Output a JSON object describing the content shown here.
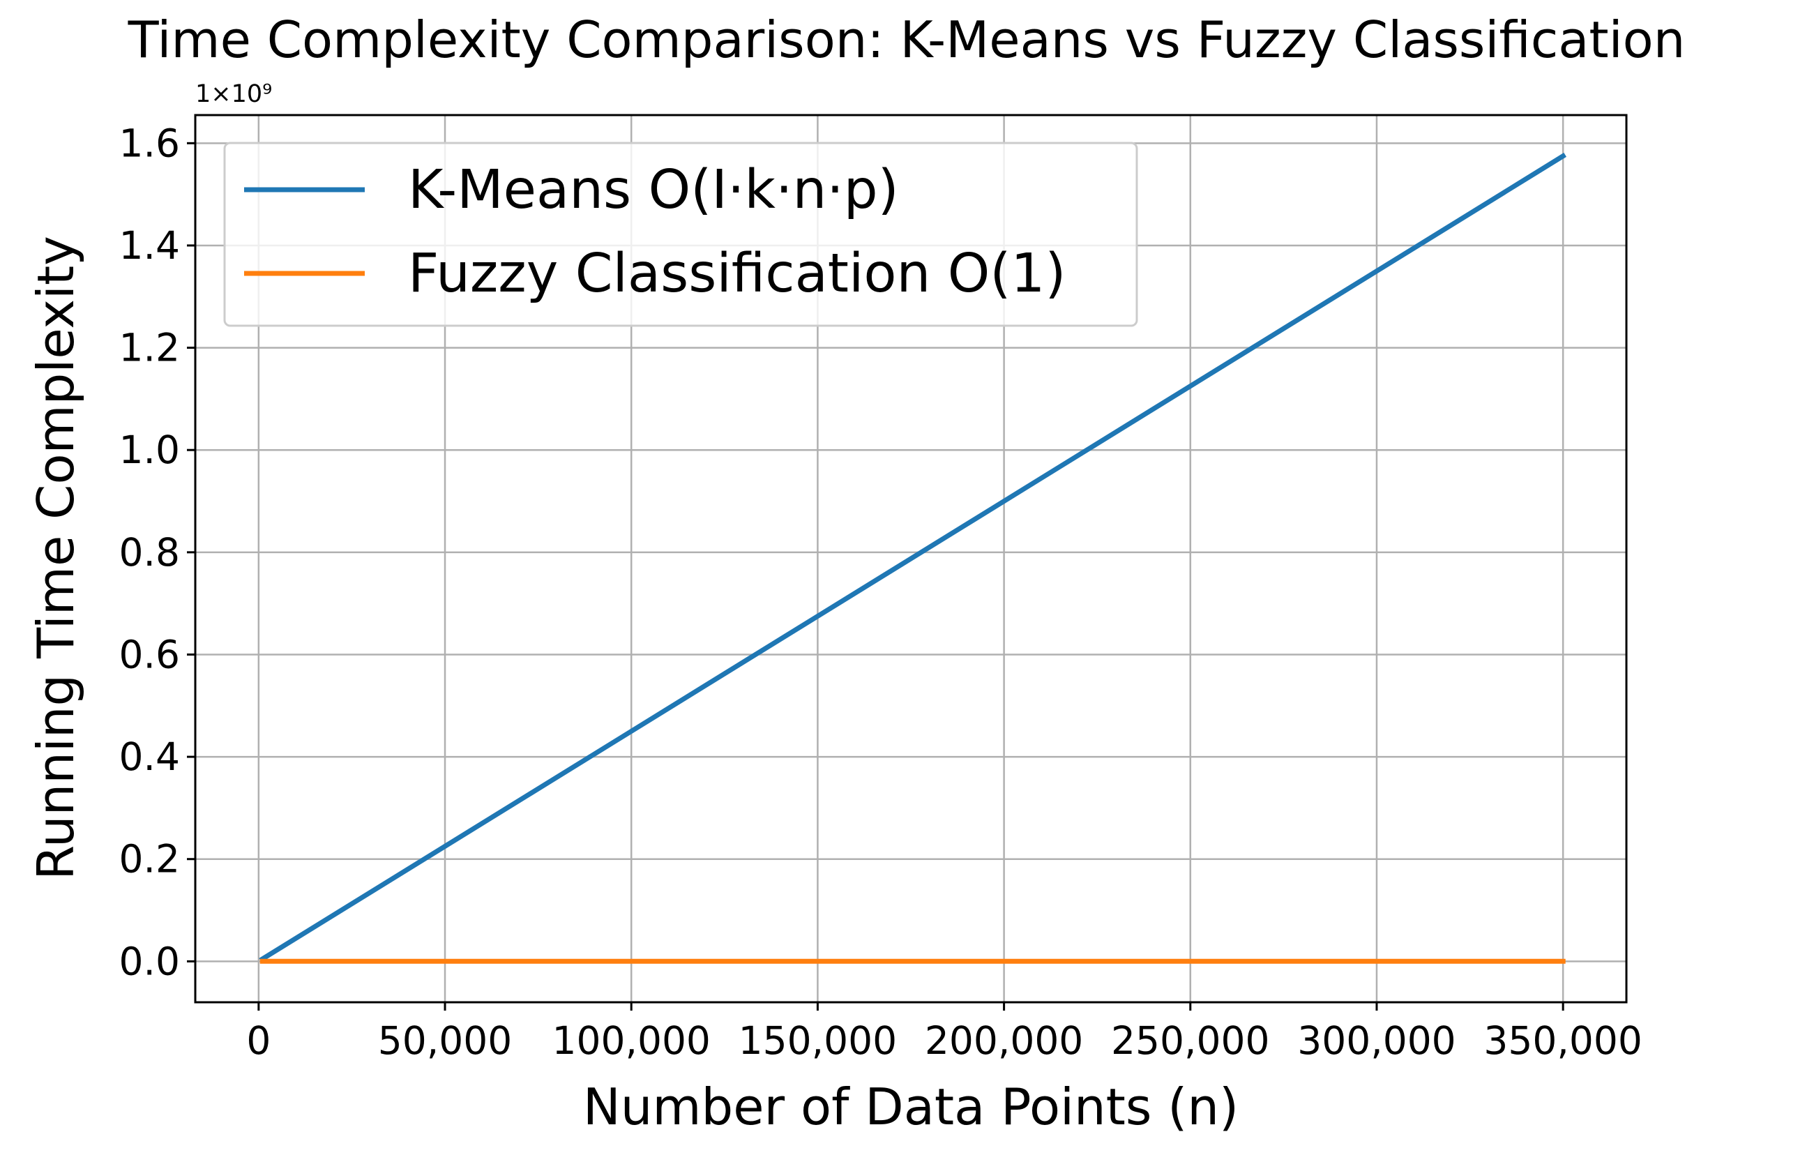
{
  "chart_data": {
    "type": "line",
    "title": "Time Complexity Comparison: K-Means vs Fuzzy Classification",
    "xlabel": "Number of Data Points (n)",
    "ylabel": "Running Time Complexity",
    "y_offset_label": "1×10⁹",
    "x_ticks": [
      {
        "value": 0,
        "label": "0"
      },
      {
        "value": 50000,
        "label": "50,000"
      },
      {
        "value": 100000,
        "label": "100,000"
      },
      {
        "value": 150000,
        "label": "150,000"
      },
      {
        "value": 200000,
        "label": "200,000"
      },
      {
        "value": 250000,
        "label": "250,000"
      },
      {
        "value": 300000,
        "label": "300,000"
      },
      {
        "value": 350000,
        "label": "350,000"
      }
    ],
    "y_ticks": [
      {
        "value": 0.0,
        "label": "0.0"
      },
      {
        "value": 0.2,
        "label": "0.2"
      },
      {
        "value": 0.4,
        "label": "0.4"
      },
      {
        "value": 0.6,
        "label": "0.6"
      },
      {
        "value": 0.8,
        "label": "0.8"
      },
      {
        "value": 1.0,
        "label": "1.0"
      },
      {
        "value": 1.2,
        "label": "1.2"
      },
      {
        "value": 1.4,
        "label": "1.4"
      },
      {
        "value": 1.6,
        "label": "1.6"
      }
    ],
    "xlim": [
      -17000,
      367000
    ],
    "ylim": [
      -0.08,
      1.655
    ],
    "y_unit": 1000000000,
    "grid": true,
    "legend_position": "upper-left",
    "series": [
      {
        "name": "K-Means O(I·k·n·p)",
        "color": "#1f77b4",
        "x": [
          1000,
          350000
        ],
        "y": [
          0.0045,
          1.575
        ]
      },
      {
        "name": "Fuzzy Classification O(1)",
        "color": "#ff7f0e",
        "x": [
          1000,
          350000
        ],
        "y": [
          0.0,
          0.0
        ]
      }
    ]
  }
}
